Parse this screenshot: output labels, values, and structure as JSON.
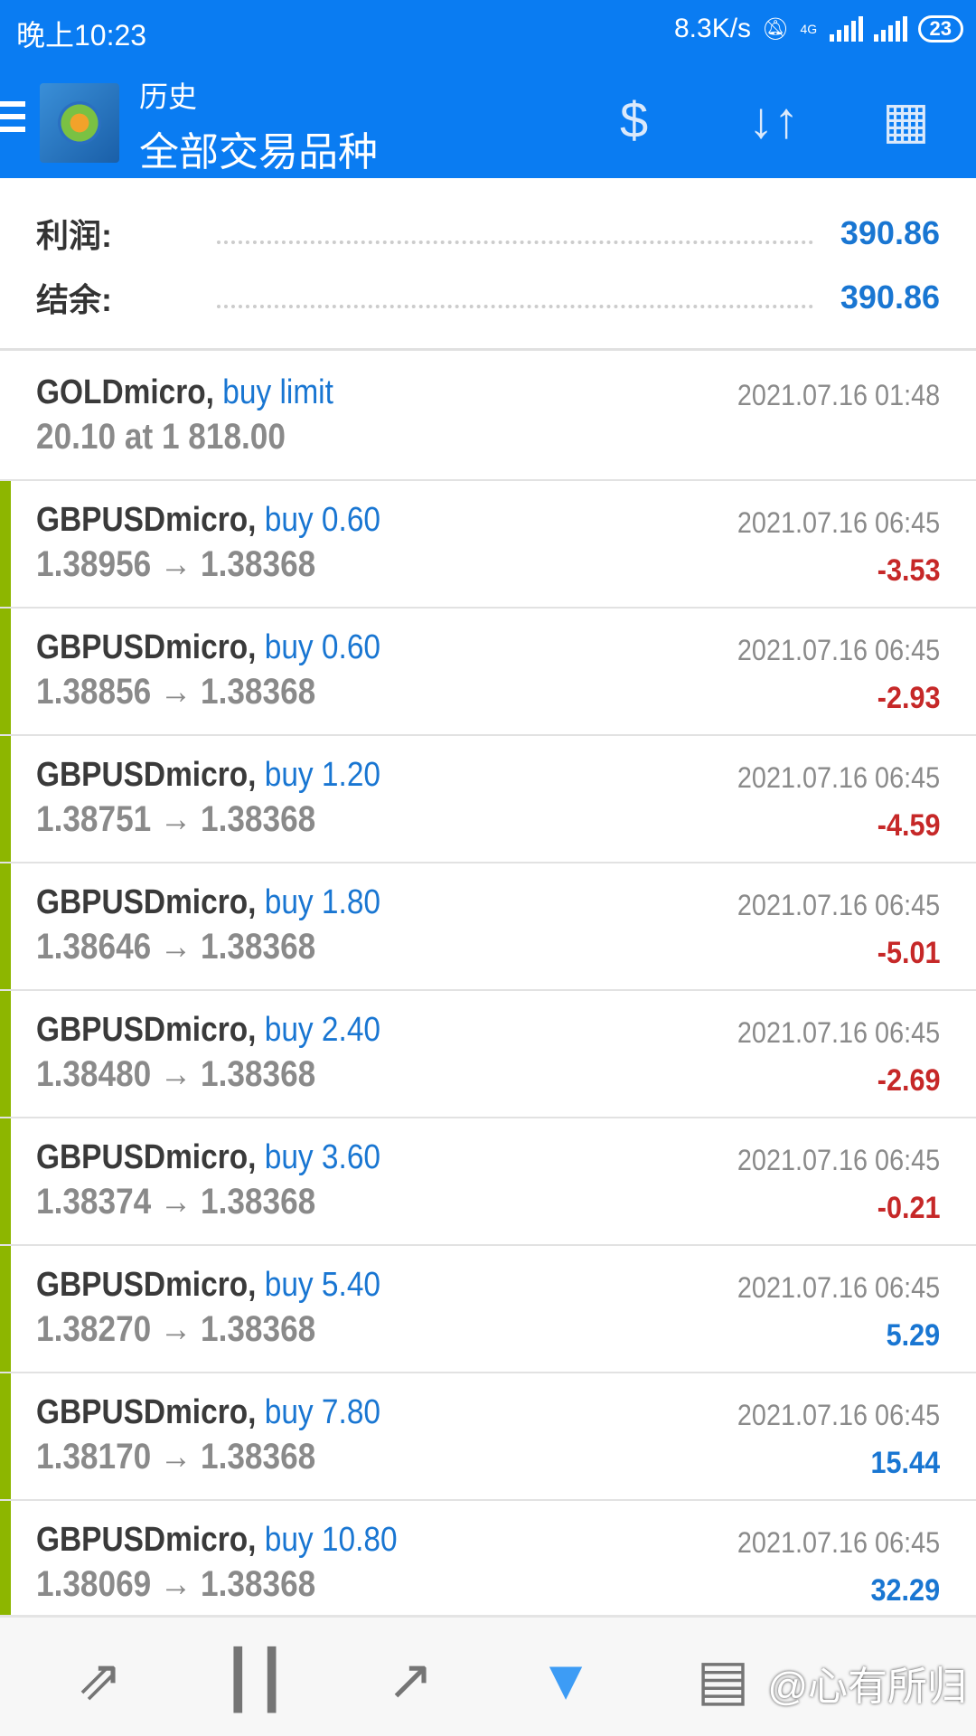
{
  "status": {
    "time": "晚上10:23",
    "speed": "8.3K/s",
    "battery": "23",
    "network": "4G"
  },
  "header": {
    "title": "历史",
    "subtitle": "全部交易品种",
    "icons": [
      "menu-icon",
      "currency-exchange-icon",
      "sort-icon",
      "calendar-icon"
    ]
  },
  "summary": {
    "profit_label": "利润:",
    "profit": "390.86",
    "balance_label": "结余:",
    "balance": "390.86"
  },
  "order": {
    "symbol": "GOLDmicro,",
    "type": "buy limit",
    "detail": "20.10 at 1 818.00",
    "date": "2021.07.16 01:48"
  },
  "deals": [
    {
      "symbol": "GBPUSDmicro,",
      "type": "buy 0.60",
      "prices": "1.38956 → 1.38368",
      "date": "2021.07.16 06:45",
      "profit": "-3.53"
    },
    {
      "symbol": "GBPUSDmicro,",
      "type": "buy 0.60",
      "prices": "1.38856 → 1.38368",
      "date": "2021.07.16 06:45",
      "profit": "-2.93"
    },
    {
      "symbol": "GBPUSDmicro,",
      "type": "buy 1.20",
      "prices": "1.38751 → 1.38368",
      "date": "2021.07.16 06:45",
      "profit": "-4.59"
    },
    {
      "symbol": "GBPUSDmicro,",
      "type": "buy 1.80",
      "prices": "1.38646 → 1.38368",
      "date": "2021.07.16 06:45",
      "profit": "-5.01"
    },
    {
      "symbol": "GBPUSDmicro,",
      "type": "buy 2.40",
      "prices": "1.38480 → 1.38368",
      "date": "2021.07.16 06:45",
      "profit": "-2.69"
    },
    {
      "symbol": "GBPUSDmicro,",
      "type": "buy 3.60",
      "prices": "1.38374 → 1.38368",
      "date": "2021.07.16 06:45",
      "profit": "-0.21"
    },
    {
      "symbol": "GBPUSDmicro,",
      "type": "buy 5.40",
      "prices": "1.38270 → 1.38368",
      "date": "2021.07.16 06:45",
      "profit": "5.29"
    },
    {
      "symbol": "GBPUSDmicro,",
      "type": "buy 7.80",
      "prices": "1.38170 → 1.38368",
      "date": "2021.07.16 06:45",
      "profit": "15.44"
    },
    {
      "symbol": "GBPUSDmicro,",
      "type": "buy 10.80",
      "prices": "1.38069 → 1.38368",
      "date": "2021.07.16 06:45",
      "profit": "32.29"
    }
  ],
  "nav": {
    "items": [
      "quotes",
      "chart",
      "trade",
      "history",
      "news"
    ],
    "active": "history"
  },
  "watermark": "@心有所归",
  "colors": {
    "header": "#0a7cf2",
    "loss": "#c62828",
    "gain": "#1976d2",
    "buy_bar": "#8db600"
  }
}
